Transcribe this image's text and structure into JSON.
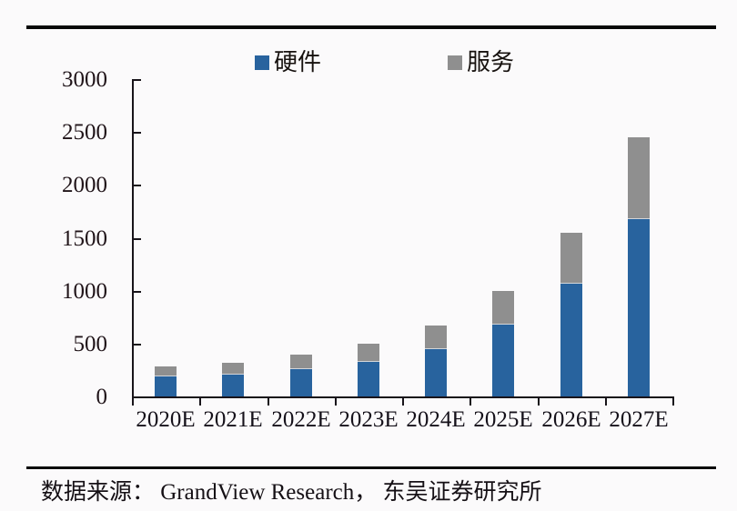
{
  "chart_data": {
    "type": "bar",
    "stacked": true,
    "title": "",
    "categories": [
      "2020E",
      "2021E",
      "2022E",
      "2023E",
      "2024E",
      "2025E",
      "2026E",
      "2027E"
    ],
    "series": [
      {
        "name": "硬件",
        "color": "#28639e",
        "values": [
          190,
          210,
          260,
          330,
          450,
          680,
          1070,
          1680
        ]
      },
      {
        "name": "服务",
        "color": "#8f8f8f",
        "values": [
          95,
          110,
          135,
          170,
          225,
          320,
          480,
          770
        ]
      }
    ],
    "totals": [
      285,
      320,
      395,
      500,
      675,
      1000,
      1550,
      2450
    ],
    "xlabel": "",
    "ylabel": "",
    "ylim": [
      0,
      3000
    ],
    "yticks": [
      0,
      500,
      1000,
      1500,
      2000,
      2500,
      3000
    ],
    "grid": false,
    "legend_position": "top",
    "axis_color": "#18141a",
    "background": "#fbfafb"
  },
  "footer": {
    "source_text": "数据来源： GrandView Research， 东吴证券研究所"
  }
}
